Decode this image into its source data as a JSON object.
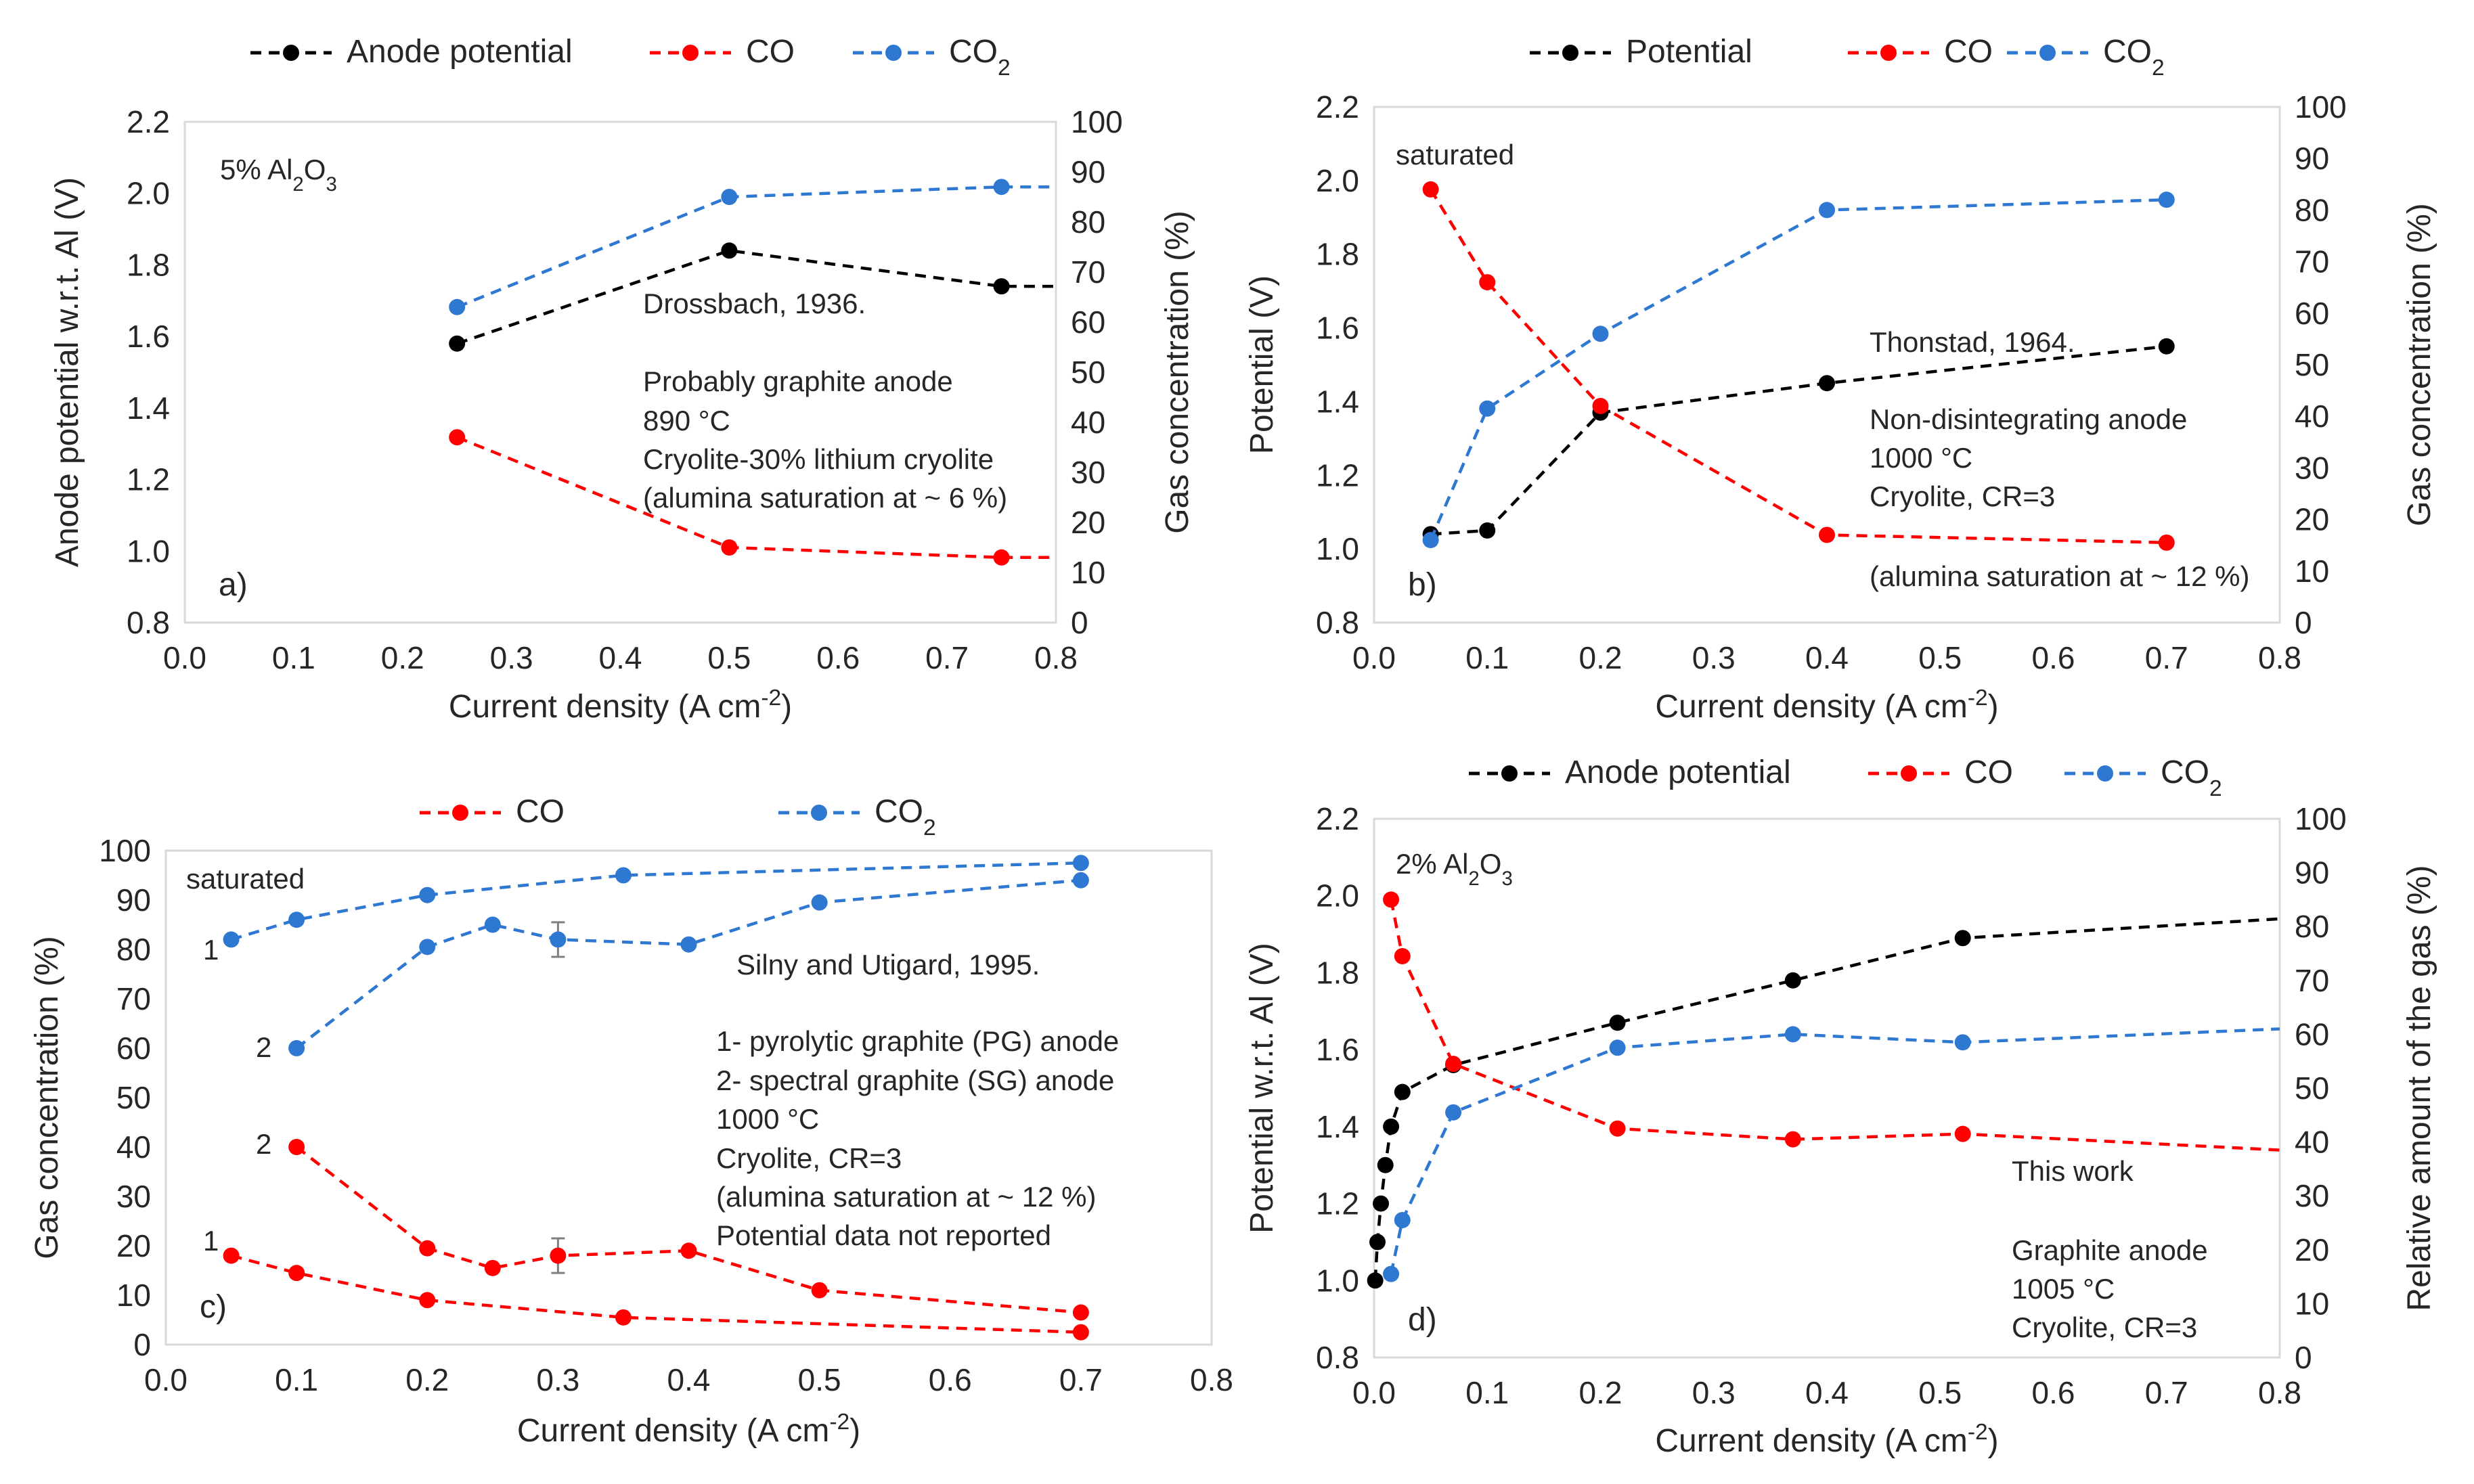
{
  "figure": {
    "panel_count": 4
  },
  "colors": {
    "potential": "#000000",
    "co": "#ff0000",
    "co2": "#2e78d2",
    "grid": "#d9d9d9",
    "text": "#262626"
  },
  "chart_data": [
    {
      "id": "a",
      "type": "line",
      "panel_label": "a)",
      "xlabel": "Current density (A cm-2)",
      "ylabel_left": "Anode potential w.r.t. Al (V)",
      "ylabel_right": "Gas concentration (%)",
      "xlim": [
        0,
        0.8
      ],
      "ylim_left": [
        0.8,
        2.2
      ],
      "ylim_right": [
        0,
        100
      ],
      "xticks": [
        "0.0",
        "0.1",
        "0.2",
        "0.3",
        "0.4",
        "0.5",
        "0.6",
        "0.7",
        "0.8"
      ],
      "yticks_left": [
        "0.8",
        "1.0",
        "1.2",
        "1.4",
        "1.6",
        "1.8",
        "2.0",
        "2.2"
      ],
      "yticks_right": [
        "0",
        "10",
        "20",
        "30",
        "40",
        "50",
        "60",
        "70",
        "80",
        "90",
        "100"
      ],
      "legend": [
        "Anode potential",
        "CO",
        "CO2"
      ],
      "annotations": [
        "5% Al2O3",
        "Drossbach, 1936.",
        "Probably graphite anode",
        "890 °C",
        "Cryolite-30% lithium cryolite",
        "(alumina saturation at ~ 6 %)"
      ],
      "series": [
        {
          "name": "Anode potential",
          "axis": "left",
          "color": "#000000",
          "x": [
            0.25,
            0.5,
            0.75
          ],
          "y": [
            1.58,
            1.84,
            1.74
          ],
          "extend_to": [
            0.8,
            1.74
          ]
        },
        {
          "name": "CO",
          "axis": "right",
          "color": "#ff0000",
          "x": [
            0.25,
            0.5,
            0.75
          ],
          "y": [
            37,
            15,
            13
          ],
          "extend_to": [
            0.8,
            13
          ]
        },
        {
          "name": "CO2",
          "axis": "right",
          "color": "#2e78d2",
          "x": [
            0.25,
            0.5,
            0.75
          ],
          "y": [
            63,
            85,
            87
          ],
          "extend_to": [
            0.8,
            87
          ]
        }
      ]
    },
    {
      "id": "b",
      "type": "line",
      "panel_label": "b)",
      "xlabel": "Current density (A cm-2)",
      "ylabel_left": "Potential (V)",
      "ylabel_right": "Gas concentration (%)",
      "xlim": [
        0,
        0.8
      ],
      "ylim_left": [
        0.8,
        2.2
      ],
      "ylim_right": [
        0,
        100
      ],
      "xticks": [
        "0.0",
        "0.1",
        "0.2",
        "0.3",
        "0.4",
        "0.5",
        "0.6",
        "0.7",
        "0.8"
      ],
      "yticks_left": [
        "0.8",
        "1.0",
        "1.2",
        "1.4",
        "1.6",
        "1.8",
        "2.0",
        "2.2"
      ],
      "yticks_right": [
        "0",
        "10",
        "20",
        "30",
        "40",
        "50",
        "60",
        "70",
        "80",
        "90",
        "100"
      ],
      "legend": [
        "Potential",
        "CO",
        "CO2"
      ],
      "annotations": [
        "saturated",
        "Thonstad, 1964.",
        "Non-disintegrating anode",
        "1000 °C",
        "Cryolite, CR=3",
        "(alumina saturation at ~ 12 %)"
      ],
      "series": [
        {
          "name": "Potential",
          "axis": "left",
          "color": "#000000",
          "x": [
            0.05,
            0.1,
            0.2,
            0.4,
            0.7
          ],
          "y": [
            1.04,
            1.05,
            1.37,
            1.45,
            1.55
          ]
        },
        {
          "name": "CO",
          "axis": "right",
          "color": "#ff0000",
          "x": [
            0.05,
            0.1,
            0.2,
            0.4,
            0.7
          ],
          "y": [
            84,
            66,
            42,
            17,
            15.5
          ]
        },
        {
          "name": "CO2",
          "axis": "right",
          "color": "#2e78d2",
          "x": [
            0.05,
            0.1,
            0.2,
            0.4,
            0.7
          ],
          "y": [
            16,
            41.5,
            56,
            80,
            82
          ]
        }
      ]
    },
    {
      "id": "c",
      "type": "line",
      "panel_label": "c)",
      "xlabel": "Current density (A cm-2)",
      "ylabel_left": "Gas concentration (%)",
      "xlim": [
        0,
        0.8
      ],
      "ylim_left": [
        0,
        100
      ],
      "xticks": [
        "0.0",
        "0.1",
        "0.2",
        "0.3",
        "0.4",
        "0.5",
        "0.6",
        "0.7",
        "0.8"
      ],
      "yticks_left": [
        "0",
        "10",
        "20",
        "30",
        "40",
        "50",
        "60",
        "70",
        "80",
        "90",
        "100"
      ],
      "legend": [
        "CO",
        "CO2"
      ],
      "annotations": [
        "saturated",
        "Silny and Utigard, 1995.",
        "1- pyrolytic graphite (PG) anode",
        "2- spectral graphite (SG) anode",
        "1000 °C",
        "Cryolite, CR=3",
        "(alumina saturation at ~ 12 %)",
        "Potential data not reported"
      ],
      "curve_labels": {
        "co2_1": "1",
        "co2_2": "2",
        "co_2": "2",
        "co_1": "1"
      },
      "series": [
        {
          "name": "CO2 (1)",
          "axis": "left",
          "color": "#2e78d2",
          "x": [
            0.05,
            0.1,
            0.2,
            0.35,
            0.7
          ],
          "y": [
            82,
            86,
            91,
            95,
            97.5
          ]
        },
        {
          "name": "CO2 (2)",
          "axis": "left",
          "color": "#2e78d2",
          "x": [
            0.1,
            0.2,
            0.25,
            0.3,
            0.4,
            0.5,
            0.7
          ],
          "y": [
            60,
            80.5,
            85,
            82,
            81,
            89.5,
            94
          ],
          "error": {
            "x": 0.3,
            "y": 82,
            "err": 3.5
          }
        },
        {
          "name": "CO (2)",
          "axis": "left",
          "color": "#ff0000",
          "x": [
            0.1,
            0.2,
            0.25,
            0.3,
            0.4,
            0.5,
            0.7
          ],
          "y": [
            40,
            19.5,
            15.5,
            18,
            19,
            11,
            6.5
          ],
          "error": {
            "x": 0.3,
            "y": 18,
            "err": 3.5
          }
        },
        {
          "name": "CO (1)",
          "axis": "left",
          "color": "#ff0000",
          "x": [
            0.05,
            0.1,
            0.2,
            0.35,
            0.7
          ],
          "y": [
            18,
            14.5,
            9,
            5.5,
            2.5
          ]
        }
      ]
    },
    {
      "id": "d",
      "type": "line",
      "panel_label": "d)",
      "xlabel": "Current density (A cm-2)",
      "ylabel_left": "Potential w.r.t. Al (V)",
      "ylabel_right": "Relative amount of the gas (%)",
      "xlim": [
        0,
        0.8
      ],
      "ylim_left": [
        0.8,
        2.2
      ],
      "ylim_right": [
        0,
        100
      ],
      "xticks": [
        "0.0",
        "0.1",
        "0.2",
        "0.3",
        "0.4",
        "0.5",
        "0.6",
        "0.7",
        "0.8"
      ],
      "yticks_left": [
        "0.8",
        "1.0",
        "1.2",
        "1.4",
        "1.6",
        "1.8",
        "2.0",
        "2.2"
      ],
      "yticks_right": [
        "0",
        "10",
        "20",
        "30",
        "40",
        "50",
        "60",
        "70",
        "80",
        "90",
        "100"
      ],
      "legend": [
        "Anode potential",
        "CO",
        "CO2"
      ],
      "annotations": [
        "2% Al2O3",
        "This work",
        "Graphite anode",
        "1005 °C",
        "Cryolite, CR=3"
      ],
      "series": [
        {
          "name": "Anode potential",
          "axis": "left",
          "color": "#000000",
          "x": [
            0.001,
            0.003,
            0.006,
            0.01,
            0.015,
            0.025,
            0.07,
            0.215,
            0.37,
            0.52
          ],
          "y": [
            1.0,
            1.1,
            1.2,
            1.3,
            1.4,
            1.49,
            1.56,
            1.67,
            1.78,
            1.89
          ],
          "extend_to": [
            0.8,
            1.94
          ]
        },
        {
          "name": "CO",
          "axis": "right",
          "color": "#ff0000",
          "x": [
            0.015,
            0.025,
            0.07,
            0.215,
            0.37,
            0.52
          ],
          "y": [
            85,
            74.5,
            54.5,
            42.5,
            40.5,
            41.5
          ],
          "extend_to": [
            0.8,
            38.5
          ]
        },
        {
          "name": "CO2",
          "axis": "right",
          "color": "#2e78d2",
          "x": [
            0.015,
            0.025,
            0.07,
            0.215,
            0.37,
            0.52
          ],
          "y": [
            15.5,
            25.5,
            45.5,
            57.5,
            60,
            58.5
          ],
          "extend_to": [
            0.8,
            61
          ]
        }
      ]
    }
  ]
}
